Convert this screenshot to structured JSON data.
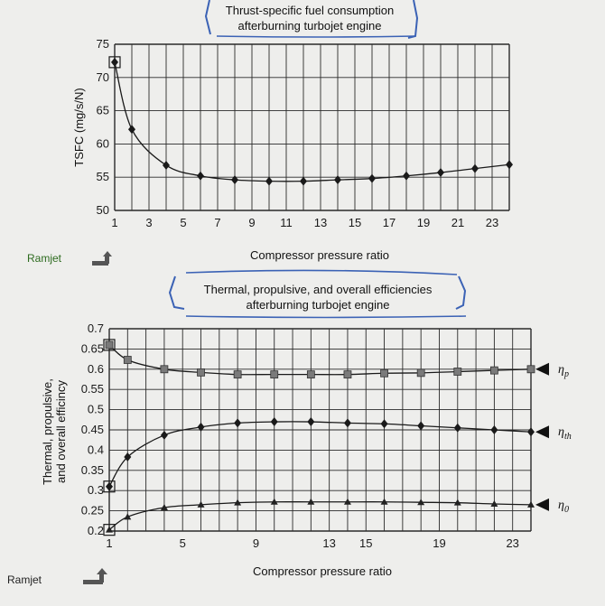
{
  "chart_data": [
    {
      "type": "line",
      "title_line1": "Thrust-specific fuel consumption",
      "title_line2": "afterburning turbojet engine",
      "xlabel": "Compressor pressure ratio",
      "ylabel": "TSFC (mg/s/N)",
      "xlim": [
        1,
        24
      ],
      "ylim": [
        50,
        75
      ],
      "x_ticks": [
        1,
        3,
        5,
        7,
        9,
        11,
        13,
        15,
        17,
        19,
        21,
        23
      ],
      "y_ticks": [
        50,
        55,
        60,
        65,
        70,
        75
      ],
      "series": [
        {
          "marker": "diamond",
          "points": [
            [
              1,
              72.3
            ],
            [
              2,
              62.2
            ],
            [
              4,
              56.8
            ],
            [
              6,
              55.2
            ],
            [
              8,
              54.6
            ],
            [
              10,
              54.4
            ],
            [
              12,
              54.4
            ],
            [
              14,
              54.6
            ],
            [
              16,
              54.8
            ],
            [
              18,
              55.2
            ],
            [
              20,
              55.7
            ],
            [
              22,
              56.3
            ],
            [
              24,
              56.9
            ]
          ]
        }
      ],
      "ramjet_label": "Ramjet"
    },
    {
      "type": "line",
      "title_line1": "Thermal, propulsive, and overall efficiencies",
      "title_line2": "afterburning turbojet engine",
      "xlabel": "Compressor pressure ratio",
      "ylabel_line1": "Thermal, propulsive,",
      "ylabel_line2": "and overall efficincy",
      "xlim": [
        1,
        24
      ],
      "ylim": [
        0.2,
        0.7
      ],
      "x_ticks": [
        1,
        5,
        9,
        13,
        15,
        19,
        23
      ],
      "y_ticks": [
        0.2,
        0.25,
        0.3,
        0.35,
        0.4,
        0.45,
        0.5,
        0.55,
        0.6,
        0.65,
        0.7
      ],
      "y_tick_labels": [
        "0.2",
        "0.25",
        "0.3",
        "0.35",
        "0.4",
        "0.45",
        "0.5",
        "0.55",
        "0.6",
        "0.65",
        "0.7"
      ],
      "series": [
        {
          "label_symbol": "η",
          "label_sub": "p",
          "marker": "square",
          "points": [
            [
              1,
              0.66
            ],
            [
              2,
              0.623
            ],
            [
              4,
              0.6
            ],
            [
              6,
              0.592
            ],
            [
              8,
              0.587
            ],
            [
              10,
              0.587
            ],
            [
              12,
              0.587
            ],
            [
              14,
              0.587
            ],
            [
              16,
              0.59
            ],
            [
              18,
              0.591
            ],
            [
              20,
              0.594
            ],
            [
              22,
              0.597
            ],
            [
              24,
              0.6
            ]
          ]
        },
        {
          "label_symbol": "η",
          "label_sub": "th",
          "marker": "diamond",
          "points": [
            [
              1,
              0.31
            ],
            [
              2,
              0.383
            ],
            [
              4,
              0.437
            ],
            [
              6,
              0.457
            ],
            [
              8,
              0.467
            ],
            [
              10,
              0.47
            ],
            [
              12,
              0.47
            ],
            [
              14,
              0.467
            ],
            [
              16,
              0.465
            ],
            [
              18,
              0.46
            ],
            [
              20,
              0.455
            ],
            [
              22,
              0.45
            ],
            [
              24,
              0.445
            ]
          ]
        },
        {
          "label_symbol": "η",
          "label_sub": "0",
          "marker": "triangle",
          "points": [
            [
              1,
              0.203
            ],
            [
              2,
              0.235
            ],
            [
              4,
              0.258
            ],
            [
              6,
              0.265
            ],
            [
              8,
              0.27
            ],
            [
              10,
              0.272
            ],
            [
              12,
              0.272
            ],
            [
              14,
              0.272
            ],
            [
              16,
              0.272
            ],
            [
              18,
              0.271
            ],
            [
              20,
              0.27
            ],
            [
              22,
              0.267
            ],
            [
              24,
              0.265
            ]
          ]
        }
      ],
      "ramjet_label": "Ramjet"
    }
  ],
  "colors": {
    "background": "#eeeeec",
    "line": "#1a1a1a",
    "grid": "#2a2a2a",
    "pen": "#3b62b5",
    "ramjet_text": "#2d6b1f",
    "marker_fill": "#7a7a7a"
  }
}
